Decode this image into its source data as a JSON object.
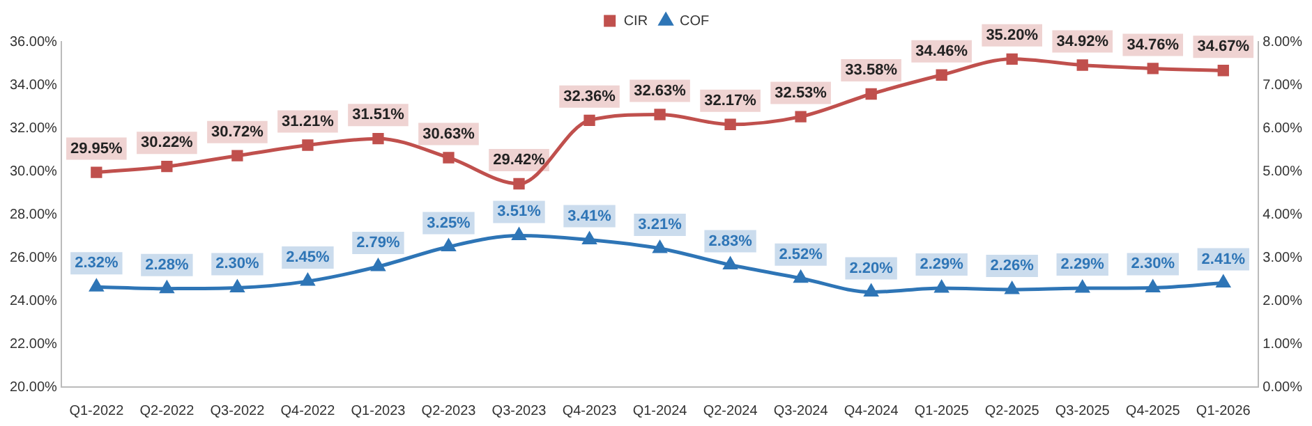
{
  "chart_data": {
    "type": "line",
    "categories": [
      "Q1-2022",
      "Q2-2022",
      "Q3-2022",
      "Q4-2022",
      "Q1-2023",
      "Q2-2023",
      "Q3-2023",
      "Q4-2023",
      "Q1-2024",
      "Q2-2024",
      "Q3-2024",
      "Q4-2024",
      "Q1-2025",
      "Q2-2025",
      "Q3-2025",
      "Q4-2025",
      "Q1-2026"
    ],
    "series": [
      {
        "name": "CIR",
        "color": "#c0504d",
        "marker": "square",
        "values": [
          29.95,
          30.22,
          30.72,
          31.21,
          31.51,
          30.63,
          29.42,
          32.36,
          32.63,
          32.17,
          32.53,
          33.58,
          34.46,
          35.2,
          34.92,
          34.76,
          34.67
        ],
        "value_labels": [
          "29.95%",
          "30.22%",
          "30.72%",
          "31.21%",
          "31.51%",
          "30.63%",
          "29.42%",
          "32.36%",
          "32.63%",
          "32.17%",
          "32.53%",
          "33.58%",
          "34.46%",
          "35.20%",
          "34.92%",
          "34.76%",
          "34.67%"
        ]
      },
      {
        "name": "COF",
        "color": "#2e75b6",
        "marker": "triangle",
        "axis": "y2",
        "values": [
          2.32,
          2.28,
          2.3,
          2.45,
          2.79,
          3.25,
          3.51,
          3.41,
          3.21,
          2.83,
          2.52,
          2.2,
          2.29,
          2.26,
          2.29,
          2.3,
          2.41
        ],
        "value_labels": [
          "2.32%",
          "2.28%",
          "2.30%",
          "2.45%",
          "2.79%",
          "3.25%",
          "3.51%",
          "3.41%",
          "3.21%",
          "2.83%",
          "2.52%",
          "2.20%",
          "2.29%",
          "2.26%",
          "2.29%",
          "2.30%",
          "2.41%"
        ]
      }
    ],
    "ylim": [
      20,
      36
    ],
    "yticks": [
      {
        "value": 20,
        "label": "20.00%"
      },
      {
        "value": 22,
        "label": "22.00%"
      },
      {
        "value": 24,
        "label": "24.00%"
      },
      {
        "value": 26,
        "label": "26.00%"
      },
      {
        "value": 28,
        "label": "28.00%"
      },
      {
        "value": 30,
        "label": "30.00%"
      },
      {
        "value": 32,
        "label": "32.00%"
      },
      {
        "value": 34,
        "label": "34.00%"
      },
      {
        "value": 36,
        "label": "36.00%"
      }
    ],
    "y2lim": [
      0,
      8
    ],
    "y2ticks": [
      {
        "value": 0,
        "label": "0.00%"
      },
      {
        "value": 1,
        "label": "1.00%"
      },
      {
        "value": 2,
        "label": "2.00%"
      },
      {
        "value": 3,
        "label": "3.00%"
      },
      {
        "value": 4,
        "label": "4.00%"
      },
      {
        "value": 5,
        "label": "5.00%"
      },
      {
        "value": 6,
        "label": "6.00%"
      },
      {
        "value": 7,
        "label": "7.00%"
      },
      {
        "value": 8,
        "label": "8.00%"
      }
    ],
    "legend": "top",
    "grid": false
  }
}
